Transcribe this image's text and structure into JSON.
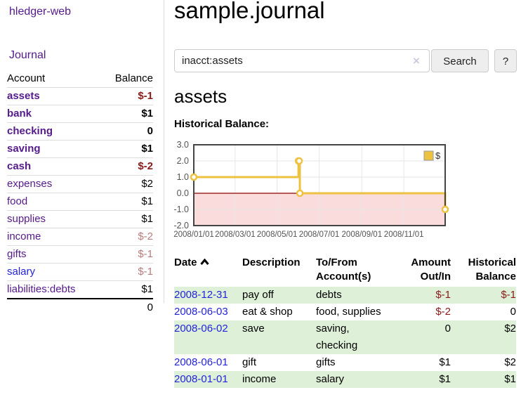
{
  "app": {
    "title": "hledger-web",
    "nav": {
      "journal": "Journal"
    }
  },
  "sidebar": {
    "header": {
      "account": "Account",
      "balance": "Balance"
    },
    "rows": [
      {
        "name": "assets",
        "balance": "$-1"
      },
      {
        "name": "bank",
        "balance": "$1"
      },
      {
        "name": "checking",
        "balance": "0"
      },
      {
        "name": "saving",
        "balance": "$1"
      },
      {
        "name": "cash",
        "balance": "$-2"
      },
      {
        "name": "expenses",
        "balance": "$2"
      },
      {
        "name": "food",
        "balance": "$1"
      },
      {
        "name": "supplies",
        "balance": "$1"
      },
      {
        "name": "income",
        "balance": "$-2"
      },
      {
        "name": "gifts",
        "balance": "$-1"
      },
      {
        "name": "salary",
        "balance": "$-1"
      },
      {
        "name": "liabilities:debts",
        "balance": "$1"
      }
    ],
    "total": "0"
  },
  "main": {
    "title": "sample.journal",
    "search": {
      "value": "inacct:assets",
      "clear_icon": "×",
      "button_label": "Search",
      "help_label": "?"
    },
    "account_heading": "assets",
    "chart_label": "Historical Balance:",
    "register": {
      "headers": {
        "date": "Date",
        "description": "Description",
        "accounts": "To/From Account(s)",
        "amount": "Amount Out/In",
        "balance": "Historical Balance"
      },
      "rows": [
        {
          "date": "2008-12-31",
          "description": "pay off",
          "accounts": "debts",
          "amount": "$-1",
          "balance": "$-1"
        },
        {
          "date": "2008-06-03",
          "description": "eat & shop",
          "accounts": "food, supplies",
          "amount": "$-2",
          "balance": "0"
        },
        {
          "date": "2008-06-02",
          "description": "save",
          "accounts": "saving, checking",
          "amount": "0",
          "balance": "$2"
        },
        {
          "date": "2008-06-01",
          "description": "gift",
          "accounts": "gifts",
          "amount": "$1",
          "balance": "$2"
        },
        {
          "date": "2008-01-01",
          "description": "income",
          "accounts": "salary",
          "amount": "$1",
          "balance": "$1"
        }
      ]
    }
  },
  "chart_data": {
    "type": "line",
    "style": "step",
    "title": "Historical Balance:",
    "series": [
      {
        "name": "$",
        "color": "#edc240",
        "points": [
          [
            "2008-01-01",
            1
          ],
          [
            "2008-06-01",
            2
          ],
          [
            "2008-06-02",
            2
          ],
          [
            "2008-06-03",
            0
          ],
          [
            "2008-12-31",
            -1
          ]
        ]
      }
    ],
    "x_range": [
      "2008-01-01",
      "2008-12-31"
    ],
    "x_ticks": [
      "2008/01/01",
      "2008/03/01",
      "2008/05/01",
      "2008/07/01",
      "2008/09/01",
      "2008/11/01"
    ],
    "y_ticks": [
      3.0,
      2.0,
      1.0,
      0.0,
      -1.0,
      -2.0
    ],
    "ylim": [
      -2,
      3
    ],
    "grid": true,
    "legend_position": "top-right",
    "colors": {
      "negative_fill": "#fbdcdc",
      "zero_line": "#8b0000",
      "gridline": "#e6e6e6",
      "border": "#444444",
      "tick_text": "#545454"
    }
  }
}
